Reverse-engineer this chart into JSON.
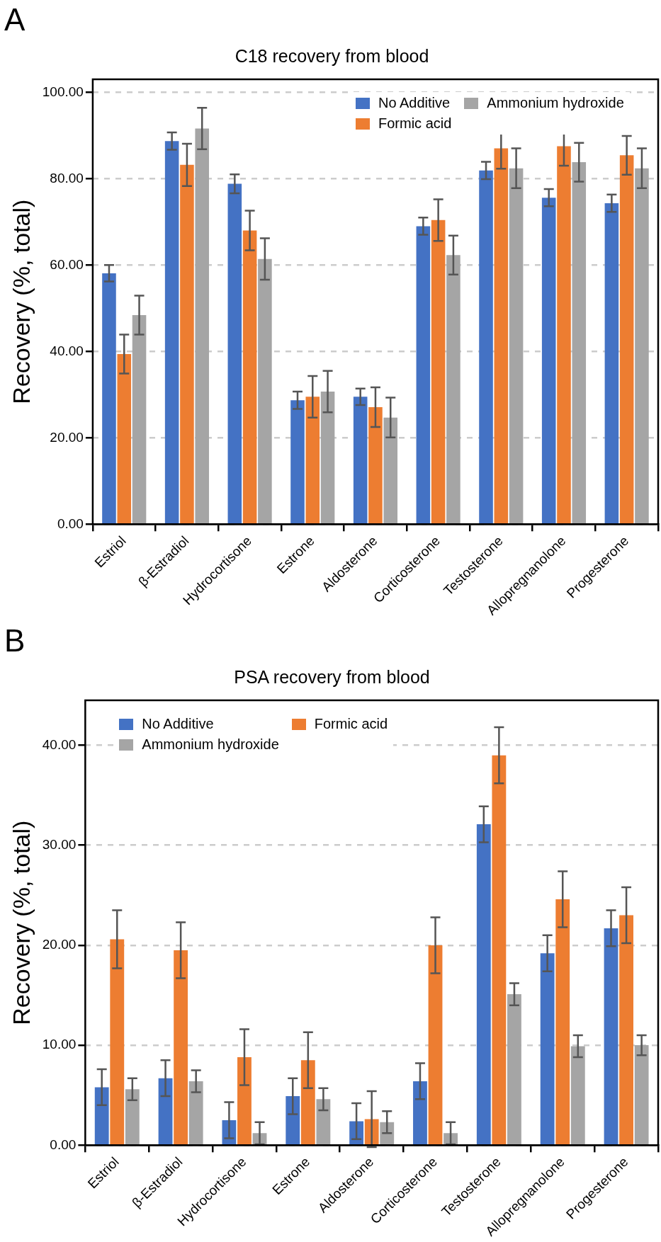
{
  "chart_data": [
    {
      "type": "bar",
      "title": "C18 recovery from blood",
      "ylabel": "Recovery (%, total)",
      "annotations": [
        "A"
      ],
      "categories": [
        "Estriol",
        "β-Estradiol",
        "Hydrocortisone",
        "Estrone",
        "Aldosterone",
        "Corticosterone",
        "Testosterone",
        "Allopregnanolone",
        "Progesterone"
      ],
      "series": [
        {
          "name": "No Additive",
          "color": "#4472c4",
          "values": [
            58.1,
            88.7,
            78.8,
            28.7,
            29.5,
            69.0,
            81.9,
            75.6,
            74.3
          ],
          "errors": [
            1.9,
            2.0,
            2.2,
            2.0,
            1.9,
            2.0,
            2.0,
            2.0,
            2.0
          ]
        },
        {
          "name": "Formic acid",
          "color": "#ed7d31",
          "values": [
            39.4,
            83.2,
            68.0,
            29.5,
            27.1,
            70.4,
            87.0,
            87.5,
            85.4
          ],
          "errors": [
            4.5,
            4.9,
            4.6,
            4.8,
            4.6,
            4.8,
            4.7,
            4.5,
            4.5
          ]
        },
        {
          "name": "Ammonium hydroxide",
          "color": "#a5a5a5",
          "values": [
            48.4,
            91.6,
            61.4,
            30.7,
            24.7,
            62.3,
            82.4,
            83.8,
            82.4
          ],
          "errors": [
            4.5,
            4.8,
            4.8,
            4.8,
            4.6,
            4.5,
            4.6,
            4.5,
            4.6
          ]
        }
      ],
      "ylim": [
        0,
        103
      ],
      "yticks": [
        {
          "value": 0,
          "label": "0.00"
        },
        {
          "value": 20,
          "label": "20.00"
        },
        {
          "value": 40,
          "label": "40.00"
        },
        {
          "value": 60,
          "label": "60.00"
        },
        {
          "value": 80,
          "label": "80.00"
        },
        {
          "value": 100,
          "label": "100.00"
        }
      ],
      "grid": "y",
      "legend": "top right"
    },
    {
      "type": "bar",
      "title": "PSA recovery from blood",
      "ylabel": "Recovery (%, total)",
      "annotations": [
        "B"
      ],
      "categories": [
        "Estriol",
        "β-Estradiol",
        "Hydrocortisone",
        "Estrone",
        "Aldosterone",
        "Corticosterone",
        "Testosterone",
        "Allopregnanolone",
        "Progesterone"
      ],
      "series": [
        {
          "name": "No Additive",
          "color": "#4472c4",
          "values": [
            5.8,
            6.7,
            2.5,
            4.9,
            2.4,
            6.4,
            32.1,
            19.2,
            21.7
          ],
          "errors": [
            1.8,
            1.8,
            1.8,
            1.8,
            1.8,
            1.8,
            1.8,
            1.8,
            1.8
          ]
        },
        {
          "name": "Formic acid",
          "color": "#ed7d31",
          "values": [
            20.6,
            19.5,
            8.8,
            8.5,
            2.6,
            20.0,
            39.0,
            24.6,
            23.0
          ],
          "errors": [
            2.9,
            2.8,
            2.8,
            2.8,
            2.8,
            2.8,
            2.8,
            2.8,
            2.8
          ]
        },
        {
          "name": "Ammonium hydroxide",
          "color": "#a5a5a5",
          "values": [
            5.6,
            6.4,
            1.2,
            4.6,
            2.3,
            1.2,
            15.1,
            9.9,
            10.0
          ],
          "errors": [
            1.1,
            1.1,
            1.1,
            1.1,
            1.1,
            1.1,
            1.1,
            1.1,
            1.0
          ]
        }
      ],
      "ylim": [
        0,
        44.5
      ],
      "yticks": [
        {
          "value": 0,
          "label": "0.00"
        },
        {
          "value": 10,
          "label": "10.00"
        },
        {
          "value": 20,
          "label": "20.00"
        },
        {
          "value": 30,
          "label": "30.00"
        },
        {
          "value": 40,
          "label": "40.00"
        }
      ],
      "grid": "y",
      "legend": "top left"
    }
  ]
}
